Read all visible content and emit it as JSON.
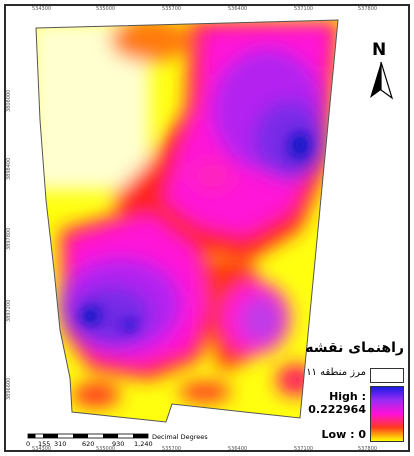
{
  "map": {
    "north_label": "N",
    "top_ticks": [
      "534300",
      "535000",
      "535700",
      "536400",
      "537100",
      "537800"
    ],
    "bottom_ticks": [
      "534300",
      "535000",
      "535700",
      "536400",
      "537100",
      "537800"
    ],
    "left_ticks": [
      "3808000",
      "3898400",
      "3897800",
      "3897200",
      "3896600"
    ]
  },
  "legend": {
    "title": "راهنمای نقشه",
    "boundary_label": "مرز منطقه ۱۱",
    "high_label": "High : 0.222964",
    "low_label": "Low : 0",
    "high_value": 0.222964,
    "low_value": 0,
    "ramp_colors": [
      "#1a1ae6",
      "#9b2cf2",
      "#ff10d8",
      "#ff3b1e",
      "#ffff00"
    ]
  },
  "scale": {
    "ticks": [
      "0",
      "155",
      "310",
      "620",
      "930",
      "1,240"
    ],
    "units": "Decimal Degrees"
  }
}
